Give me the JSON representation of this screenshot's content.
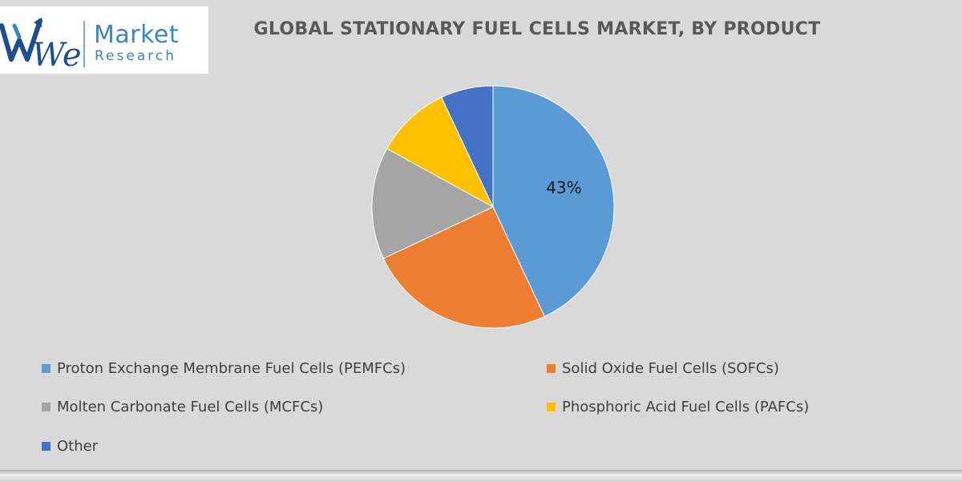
{
  "logo": {
    "monogram": "We",
    "line1": "Market",
    "line2": "Research",
    "color": "#3b86c6"
  },
  "chart_data": {
    "type": "pie",
    "title": "GLOBAL STATIONARY FUEL CELLS MARKET, BY PRODUCT",
    "series": [
      {
        "name": "Proton Exchange Membrane Fuel Cells (PEMFCs)",
        "value": 43,
        "color": "#5b9bd5",
        "label": "43%"
      },
      {
        "name": "Solid Oxide Fuel Cells (SOFCs)",
        "value": 25,
        "color": "#ed7d31",
        "label": ""
      },
      {
        "name": "Molten Carbonate Fuel Cells (MCFCs)",
        "value": 15,
        "color": "#a5a5a5",
        "label": ""
      },
      {
        "name": "Phosphoric Acid Fuel Cells (PAFCs)",
        "value": 10,
        "color": "#ffc000",
        "label": ""
      },
      {
        "name": "Other",
        "value": 7,
        "color": "#4472c4",
        "label": ""
      }
    ],
    "legend_position": "bottom"
  }
}
